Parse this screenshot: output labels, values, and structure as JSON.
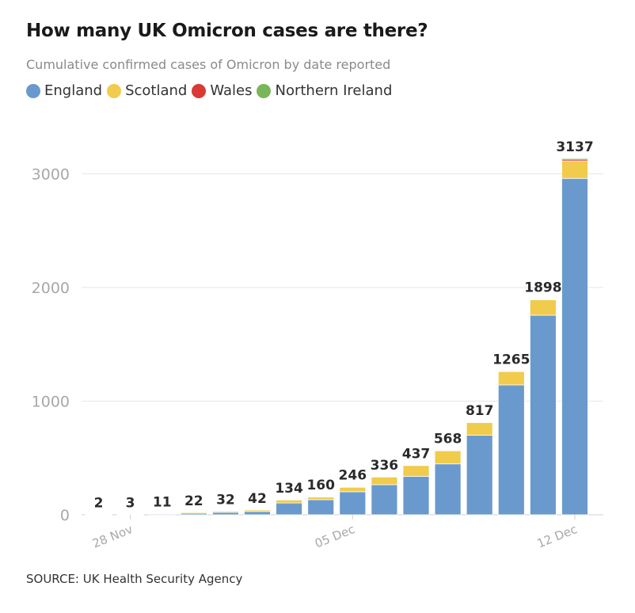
{
  "title": "How many UK Omicron cases are there?",
  "subtitle": "Cumulative confirmed cases of Omicron by date reported",
  "source": "SOURCE: UK Health Security Agency",
  "colors": {
    "England": "#6a9acd",
    "Scotland": "#f1cb4b",
    "Wales": "#d73b33",
    "Northern Ireland": "#79b65a",
    "grid": "#e6e6e6",
    "axis": "#a8a8a8"
  },
  "legend": [
    {
      "name": "England",
      "color": "#6a9acd"
    },
    {
      "name": "Scotland",
      "color": "#f1cb4b"
    },
    {
      "name": "Wales",
      "color": "#d73b33"
    },
    {
      "name": "Northern Ireland",
      "color": "#79b65a"
    }
  ],
  "chart_data": {
    "type": "bar",
    "stacked": true,
    "title": "How many UK Omicron cases are there?",
    "subtitle": "Cumulative confirmed cases of Omicron by date reported",
    "categories": [
      "27 Nov",
      "28 Nov",
      "29 Nov",
      "30 Nov",
      "01 Dec",
      "02 Dec",
      "03 Dec",
      "04 Dec",
      "05 Dec",
      "06 Dec",
      "07 Dec",
      "08 Dec",
      "09 Dec",
      "10 Dec",
      "11 Dec",
      "12 Dec"
    ],
    "x_tick_labels": [
      {
        "category": "28 Nov",
        "label": "28 Nov"
      },
      {
        "category": "05 Dec",
        "label": "05 Dec"
      },
      {
        "category": "12 Dec",
        "label": "12 Dec"
      }
    ],
    "series": [
      {
        "name": "England",
        "values": [
          2,
          2,
          9,
          14,
          22,
          29,
          104,
          133,
          203,
          265,
          338,
          448,
          700,
          1143,
          1756,
          2960
        ]
      },
      {
        "name": "Scotland",
        "values": [
          0,
          1,
          2,
          8,
          10,
          13,
          29,
          26,
          42,
          70,
          98,
          118,
          113,
          119,
          136,
          154
        ]
      },
      {
        "name": "Wales",
        "values": [
          0,
          0,
          0,
          0,
          0,
          0,
          1,
          1,
          1,
          1,
          1,
          1,
          2,
          2,
          4,
          15
        ]
      },
      {
        "name": "Northern Ireland",
        "values": [
          0,
          0,
          0,
          0,
          0,
          0,
          0,
          0,
          0,
          0,
          0,
          1,
          2,
          1,
          2,
          8
        ]
      }
    ],
    "totals": [
      2,
      3,
      11,
      22,
      32,
      42,
      134,
      160,
      246,
      336,
      437,
      568,
      817,
      1265,
      1898,
      3137
    ],
    "ylim": [
      0,
      3400
    ],
    "yticks": [
      0,
      1000,
      2000,
      3000
    ],
    "xlabel": "",
    "ylabel": "",
    "legend_position": "top-left",
    "grid": true
  }
}
